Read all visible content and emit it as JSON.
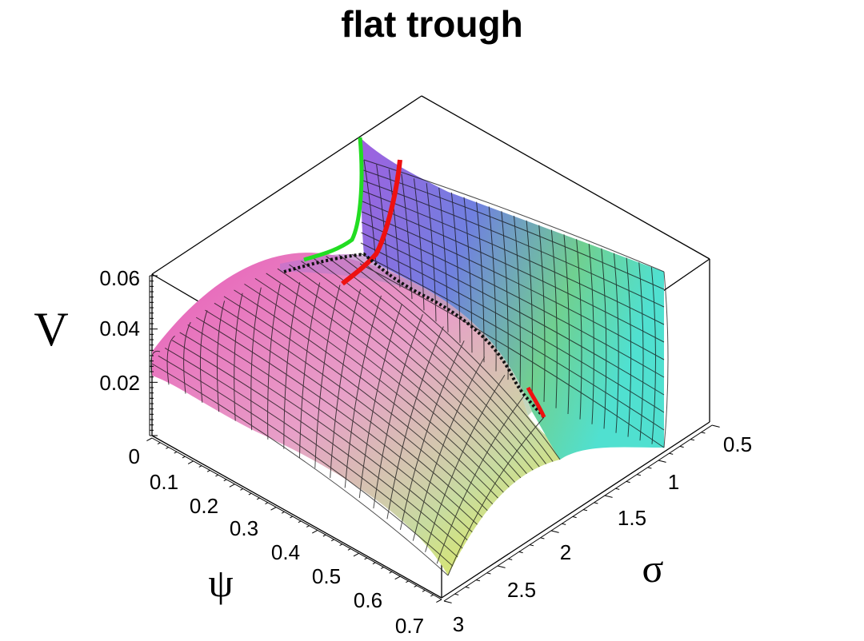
{
  "chart_data": {
    "type": "surface3d",
    "title": "flat trough",
    "zlabel": "V",
    "xlabel": "ψ",
    "ylabel": "σ",
    "x_ticks": [
      "0",
      "0.1",
      "0.2",
      "0.3",
      "0.4",
      "0.5",
      "0.6",
      "0.7"
    ],
    "y_ticks": [
      "0.5",
      "1",
      "1.5",
      "2",
      "2.5",
      "3"
    ],
    "z_ticks": [
      "0",
      "0.02",
      "0.04",
      "0.06"
    ],
    "xlim": [
      0,
      0.7
    ],
    "ylim": [
      0.5,
      3
    ],
    "zlim": [
      0,
      0.06
    ],
    "surface": {
      "description_values": "V(ψ,σ) peaks ≈0.03 near ψ=0,σ=3 and rises steeply toward σ=0.5",
      "grid_n": 20
    },
    "series": [
      {
        "name": "",
        "color": "#22dd22",
        "values": [
          [
            0.0,
            0.6,
            0.06
          ],
          [
            0.02,
            0.9,
            0.045
          ],
          [
            0.05,
            1.3,
            0.045
          ]
        ]
      },
      {
        "name": "",
        "color": "#ee1111",
        "values": [
          [
            0.05,
            0.6,
            0.06
          ],
          [
            0.07,
            0.9,
            0.045
          ],
          [
            0.1,
            1.2,
            0.04
          ]
        ]
      },
      {
        "name": "",
        "color": "#111111",
        "values": [
          [
            0.05,
            1.3,
            0.045
          ],
          [
            0.12,
            1.1,
            0.04
          ],
          [
            0.3,
            0.9,
            0.03
          ],
          [
            0.5,
            0.8,
            0.02
          ],
          [
            0.6,
            0.8,
            0.015
          ]
        ]
      }
    ],
    "grid": false,
    "legend": "none"
  }
}
